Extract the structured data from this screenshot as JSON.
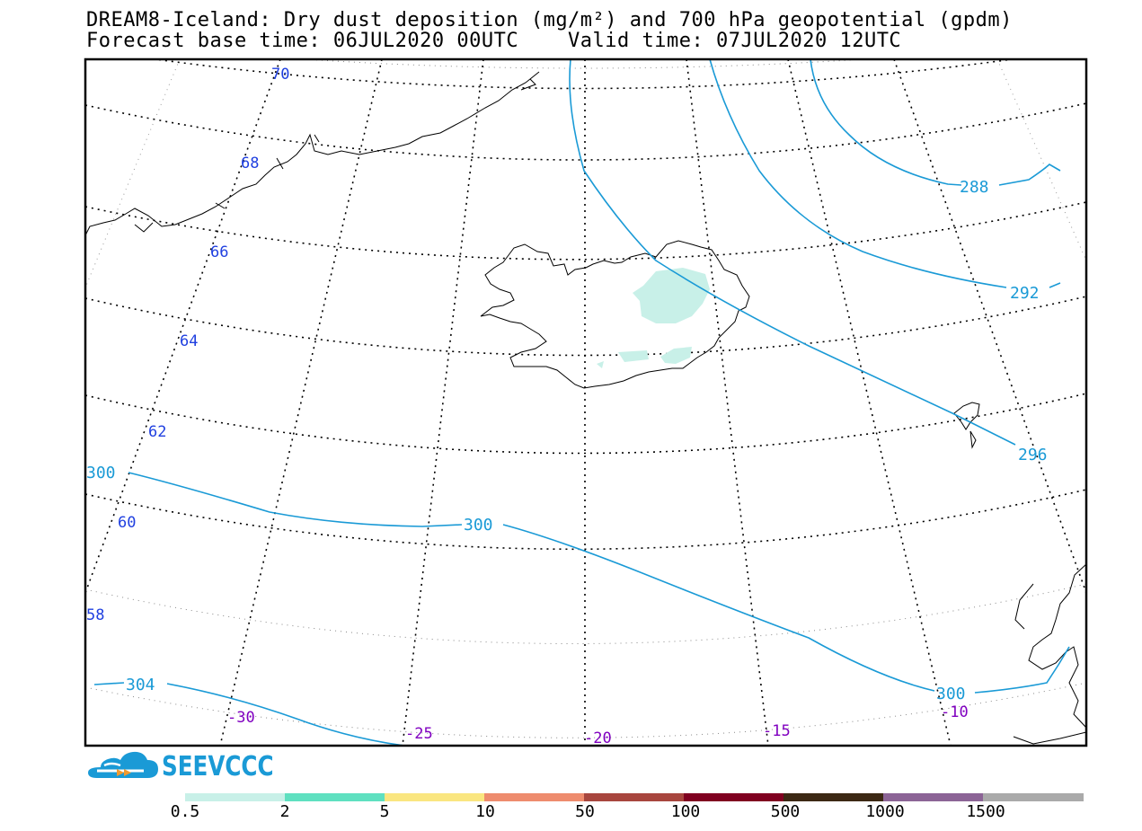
{
  "header": {
    "title_line1": "DREAM8-Iceland: Dry dust deposition (mg/m²) and 700 hPa geopotential (gpdm)",
    "title_line2": "Forecast base time: 06JUL2020 00UTC    Valid time: 07JUL2020 12UTC"
  },
  "map": {
    "region": "Iceland",
    "latitude_labels": [
      "70",
      "68",
      "66",
      "64",
      "62",
      "60",
      "58"
    ],
    "longitude_labels": [
      "-30",
      "-25",
      "-20",
      "-15",
      "-10"
    ],
    "geopotential_contours": [
      {
        "value": 288,
        "label": "288"
      },
      {
        "value": 292,
        "label": "292"
      },
      {
        "value": 296,
        "label": "296"
      },
      {
        "value": 300,
        "labels": [
          "300",
          "300",
          "300"
        ]
      },
      {
        "value": 304,
        "label": "304"
      }
    ],
    "colors": {
      "contour": "#1a9ad6",
      "lat_label": "#2040e0",
      "lon_label": "#8000c0",
      "dust_low": "#c8f0e8"
    }
  },
  "logo": {
    "text": "SEEVCCC",
    "icon": "cloud-logo-icon"
  },
  "colorbar": {
    "segments": [
      {
        "color": "#c8f0e8"
      },
      {
        "color": "#5fe0c0"
      },
      {
        "color": "#fae680"
      },
      {
        "color": "#ee8c6e"
      },
      {
        "color": "#a8463e"
      },
      {
        "color": "#800020"
      },
      {
        "color": "#3c2814"
      },
      {
        "color": "#8c6496"
      },
      {
        "color": "#aaaaaa"
      }
    ],
    "labels": [
      "0.5",
      "2",
      "5",
      "10",
      "50",
      "100",
      "500",
      "1000",
      "1500"
    ]
  }
}
